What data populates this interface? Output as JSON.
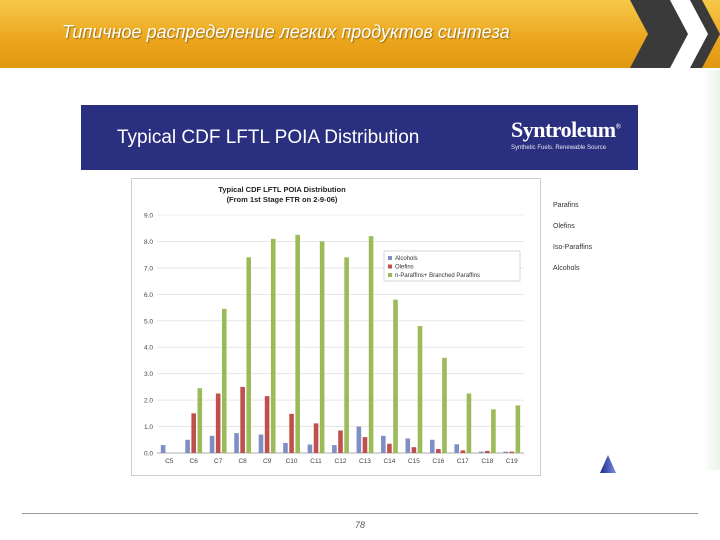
{
  "slide": {
    "banner_title": "Типичное распределение легких продуктов синтеза",
    "header_title": "Typical CDF LFTL POIA Distribution",
    "logo_text": "Syntroleum",
    "logo_mark": "®",
    "logo_tagline": "Synthetic Fuels. Renewable Source",
    "side_legend": [
      "Parafins",
      "Olefins",
      "Iso-Paraffins",
      "Alcohols"
    ],
    "page_number": "78",
    "colors": {
      "banner": "#eba51c",
      "header": "#2a2f7f",
      "alcohols": "#7f8fc4",
      "olefins": "#c0504d",
      "n_paraffins": "#9bbb59"
    }
  },
  "chart_data": {
    "type": "bar",
    "title": "Typical CDF LFTL POIA Distribution",
    "subtitle": "(From 1st Stage FTR on 2-9-06)",
    "categories": [
      "C5",
      "C6",
      "C7",
      "C8",
      "C9",
      "C10",
      "C11",
      "C12",
      "C13",
      "C14",
      "C15",
      "C16",
      "C17",
      "C18",
      "C19"
    ],
    "ylim": [
      0,
      9
    ],
    "yticks": [
      "0.0",
      "1.0",
      "2.0",
      "3.0",
      "4.0",
      "5.0",
      "6.0",
      "7.0",
      "8.0",
      "9.0"
    ],
    "legend_position": "upper-right",
    "series": [
      {
        "name": "Alcohols",
        "color": "#7f8fc4",
        "values": [
          0.3,
          0.5,
          0.65,
          0.75,
          0.7,
          0.38,
          0.32,
          0.3,
          1.0,
          0.65,
          0.55,
          0.5,
          0.33,
          0.05,
          0.05
        ]
      },
      {
        "name": "Olefins",
        "color": "#c0504d",
        "values": [
          0.0,
          1.5,
          2.25,
          2.5,
          2.15,
          1.48,
          1.12,
          0.85,
          0.6,
          0.35,
          0.22,
          0.15,
          0.1,
          0.08,
          0.05
        ]
      },
      {
        "name": "n-Paraffins+ Branched Paraffins",
        "color": "#9bbb59",
        "values": [
          0.0,
          2.45,
          5.45,
          7.4,
          8.1,
          8.25,
          8.0,
          7.4,
          8.2,
          5.8,
          4.8,
          3.6,
          2.25,
          1.65,
          1.8
        ]
      }
    ]
  }
}
